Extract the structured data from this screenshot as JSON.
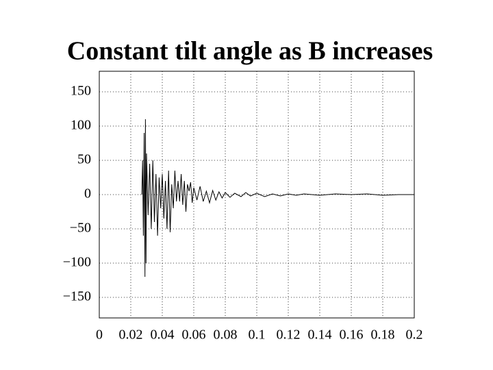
{
  "chart_data": {
    "type": "line",
    "title": "Constant tilt angle as B increases",
    "x": [
      0.027,
      0.0275,
      0.028,
      0.0285,
      0.029,
      0.0293,
      0.0297,
      0.03,
      0.031,
      0.032,
      0.033,
      0.034,
      0.035,
      0.036,
      0.037,
      0.038,
      0.039,
      0.04,
      0.041,
      0.042,
      0.043,
      0.044,
      0.045,
      0.046,
      0.047,
      0.048,
      0.049,
      0.05,
      0.051,
      0.052,
      0.053,
      0.054,
      0.055,
      0.056,
      0.057,
      0.058,
      0.059,
      0.06,
      0.062,
      0.064,
      0.066,
      0.068,
      0.07,
      0.072,
      0.074,
      0.076,
      0.078,
      0.08,
      0.083,
      0.086,
      0.09,
      0.093,
      0.096,
      0.1,
      0.105,
      0.11,
      0.115,
      0.12,
      0.125,
      0.13,
      0.14,
      0.15,
      0.16,
      0.17,
      0.18,
      0.19,
      0.2
    ],
    "values": [
      0,
      50,
      -60,
      90,
      -120,
      110,
      -100,
      60,
      -30,
      45,
      -50,
      50,
      -40,
      30,
      -60,
      25,
      -20,
      30,
      -35,
      20,
      -50,
      35,
      -55,
      15,
      -20,
      35,
      -10,
      20,
      -10,
      30,
      -15,
      20,
      -25,
      15,
      5,
      18,
      -12,
      10,
      -8,
      12,
      -10,
      5,
      -12,
      6,
      -8,
      4,
      -5,
      3,
      -4,
      2,
      -3,
      3,
      -2,
      2,
      -3,
      1,
      -2,
      1,
      -1,
      1,
      -1,
      1,
      0,
      1,
      -1,
      0,
      0
    ],
    "color": "#000000",
    "xlim": [
      0,
      0.2
    ],
    "xticks": [
      0,
      0.02,
      0.04,
      0.06,
      0.08,
      0.1,
      0.12,
      0.14,
      0.16,
      0.18,
      0.2
    ],
    "ylim": [
      -180,
      180
    ],
    "yticks": [
      {
        "value": -150,
        "label": "−150"
      },
      {
        "value": -100,
        "label": "−100"
      },
      {
        "value": -50,
        "label": "−50"
      },
      0,
      50,
      100,
      150
    ],
    "grid": true
  }
}
